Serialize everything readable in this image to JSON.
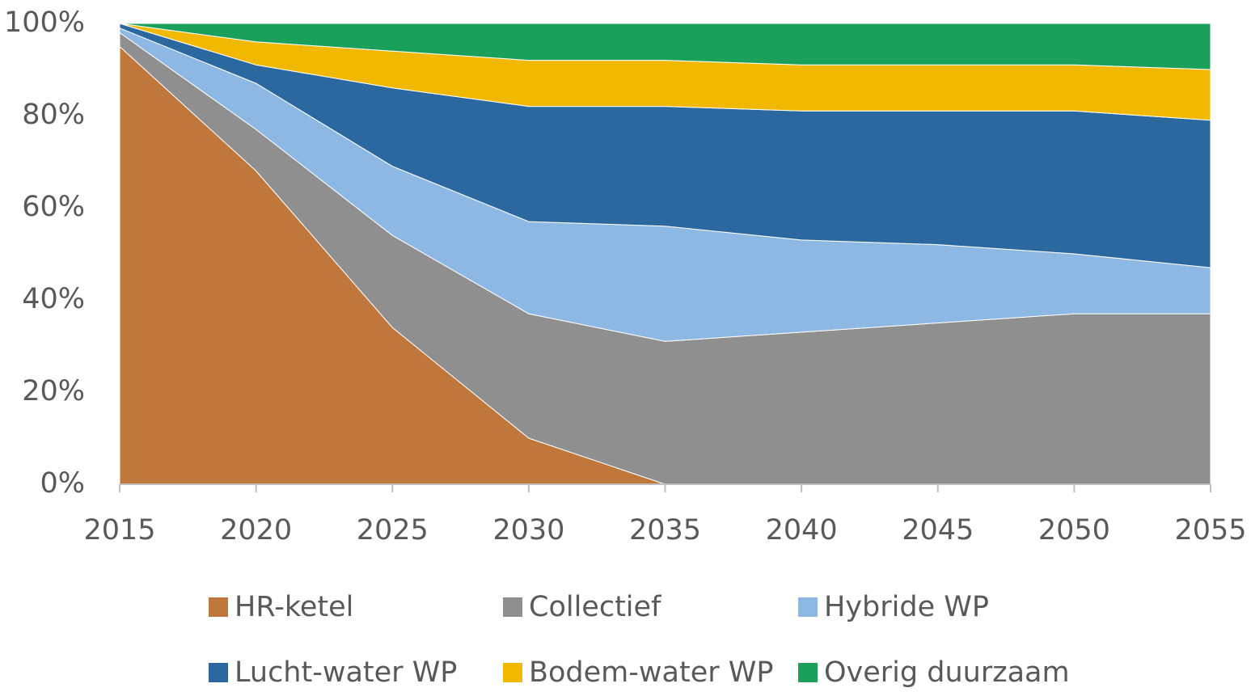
{
  "chart_data": {
    "type": "stacked_area",
    "x": [
      2015,
      2020,
      2025,
      2030,
      2035,
      2040,
      2045,
      2050,
      2055
    ],
    "xlim": [
      2015,
      2055
    ],
    "xticks": [
      2015,
      2020,
      2025,
      2030,
      2035,
      2040,
      2045,
      2050,
      2055
    ],
    "ylim": [
      0,
      100
    ],
    "yticks": [
      {
        "value": 0,
        "label": "0%"
      },
      {
        "value": 20,
        "label": "20%"
      },
      {
        "value": 40,
        "label": "40%"
      },
      {
        "value": 60,
        "label": "60%"
      },
      {
        "value": 80,
        "label": "80%"
      },
      {
        "value": 100,
        "label": "100%"
      }
    ],
    "legend": "bottom",
    "series": [
      {
        "name": "HR-ketel",
        "color": "#c0773b",
        "values": [
          95,
          68,
          34,
          10,
          0,
          0,
          0,
          0,
          0
        ]
      },
      {
        "name": "Collectief",
        "color": "#8f8f8f",
        "values": [
          3,
          9,
          20,
          27,
          31,
          33,
          35,
          37,
          37
        ]
      },
      {
        "name": "Hybride WP",
        "color": "#8db8e3",
        "values": [
          1,
          10,
          15,
          20,
          25,
          20,
          17,
          13,
          10
        ]
      },
      {
        "name": "Lucht-water WP",
        "color": "#2b68a0",
        "values": [
          1,
          4,
          17,
          25,
          26,
          28,
          29,
          31,
          32
        ]
      },
      {
        "name": "Bodem-water WP",
        "color": "#f0b800",
        "values": [
          0,
          5,
          8,
          10,
          10,
          10,
          10,
          10,
          11
        ]
      },
      {
        "name": "Overig duurzaam",
        "color": "#1aa05a",
        "values": [
          0,
          4,
          6,
          8,
          8,
          9,
          9,
          9,
          10
        ]
      }
    ]
  }
}
